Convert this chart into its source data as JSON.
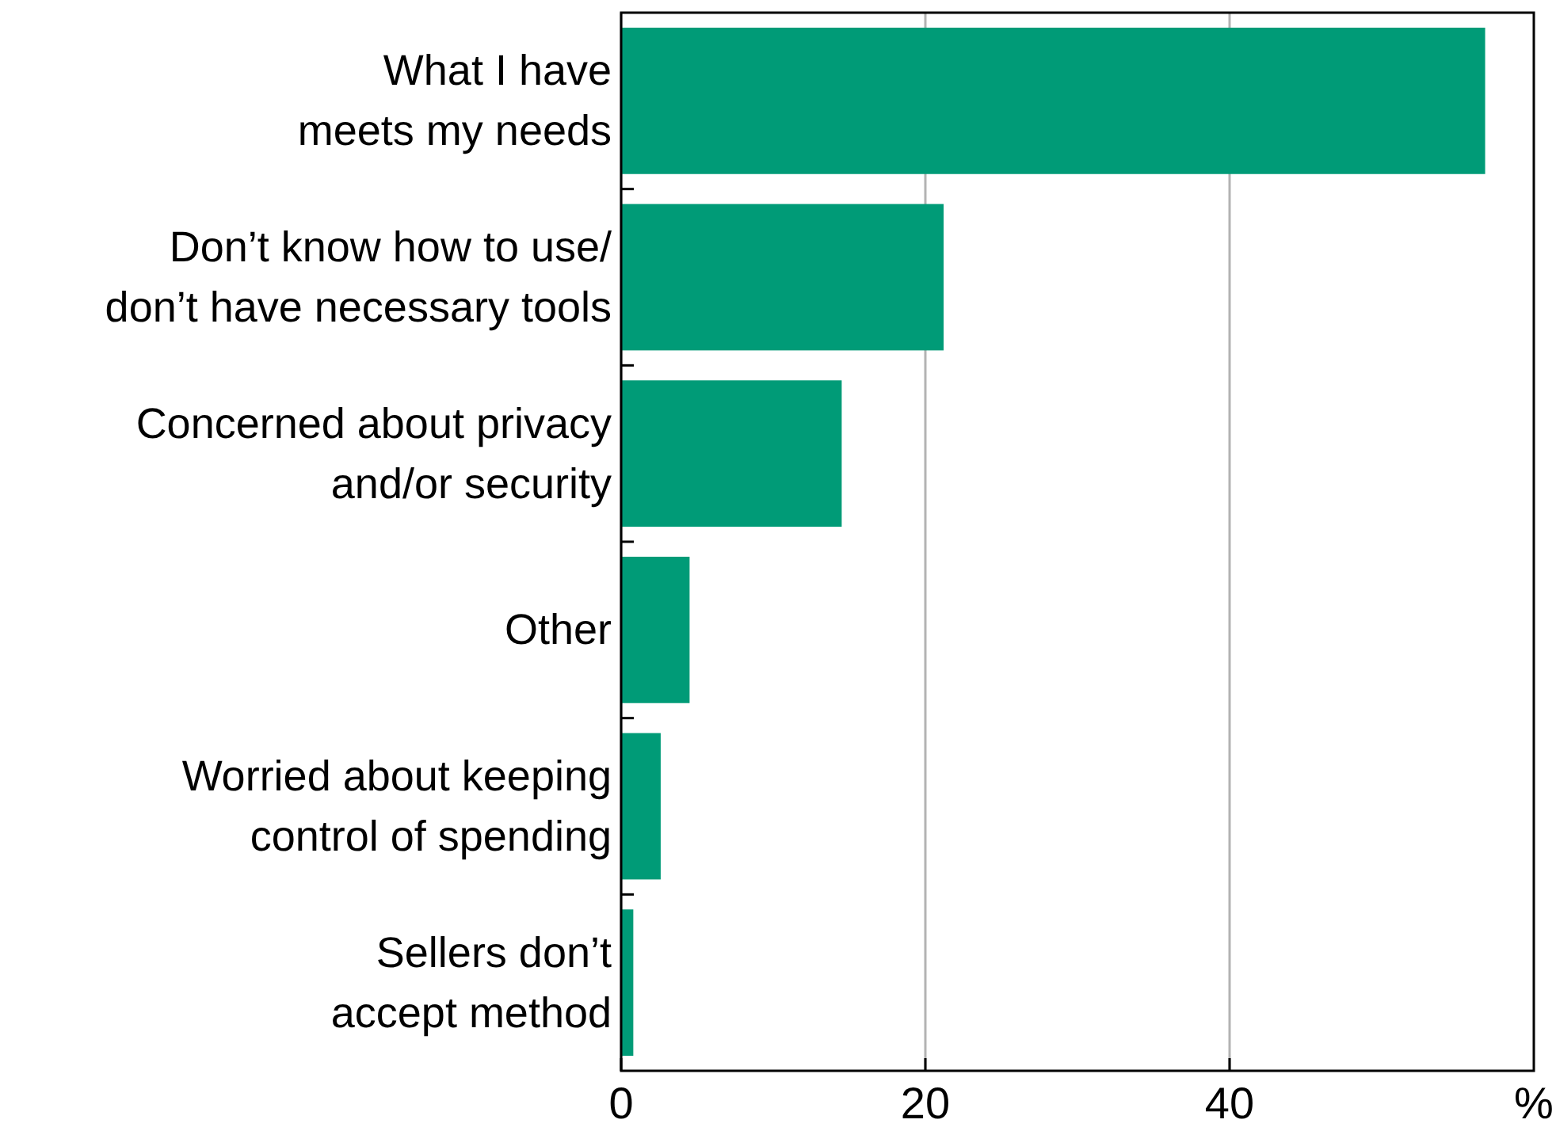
{
  "chart_data": {
    "type": "bar",
    "orientation": "horizontal",
    "categories": [
      "What I have\nmeets my needs",
      "Don’t know how to use/\ndon’t have necessary tools",
      "Concerned about privacy\nand/or security",
      "Other",
      "Worried about keeping\ncontrol of spending",
      "Sellers don’t\naccept method"
    ],
    "values": [
      56.8,
      21.2,
      14.5,
      4.5,
      2.6,
      0.8
    ],
    "color": "#009b77",
    "xlim": [
      0,
      60
    ],
    "xticks": [
      0,
      20,
      40
    ],
    "xlabel": "%",
    "grid": "x"
  }
}
